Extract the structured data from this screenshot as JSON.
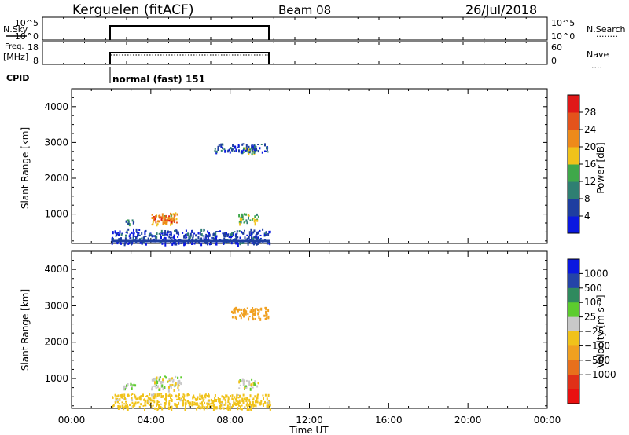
{
  "header": {
    "station": "Kerguelen (fitACF)",
    "beam": "Beam 08",
    "date": "26/Jul/2018"
  },
  "nsky_panel": {
    "left_label": "N.Sky",
    "left_ticks": [
      "10^5",
      "10^0"
    ],
    "right_ticks": [
      "10^5",
      "10^0"
    ],
    "right_label": "N.Search",
    "right_legend": "........"
  },
  "freq_panel": {
    "left_label_1": "Freq.",
    "left_label_2": "[MHz]",
    "left_ticks": [
      "18",
      "8"
    ],
    "right_ticks": [
      "60",
      "0"
    ],
    "right_label": "Nave",
    "right_legend": "...."
  },
  "cpid_panel": {
    "label": "CPID",
    "program": "normal (fast) 151"
  },
  "time_axis": {
    "label": "Time UT",
    "ticks": [
      "00:00",
      "04:00",
      "08:00",
      "12:00",
      "16:00",
      "20:00",
      "00:00"
    ]
  },
  "power_colorbar": {
    "label": "Power [dB]",
    "ticks": [
      "4",
      "8",
      "12",
      "16",
      "20",
      "24",
      "28"
    ],
    "colors": [
      "#0a18e0",
      "#1e3ea0",
      "#2f7f72",
      "#3fa84a",
      "#f0c21a",
      "#ee8a1a",
      "#e4531c",
      "#e01818"
    ]
  },
  "velocity_colorbar": {
    "label": "Velocity [m s⁻¹]",
    "ticks": [
      "1000",
      "500",
      "100",
      "25",
      "−25",
      "−100",
      "−500",
      "−1000"
    ],
    "colors": [
      "#0a18e0",
      "#2444a8",
      "#2f8a5e",
      "#5ccc2e",
      "#c8c8c8",
      "#f0c21a",
      "#f0a020",
      "#e8701c",
      "#e03018",
      "#e81010"
    ]
  },
  "chart_data": [
    {
      "type": "heatmap",
      "title": "Power",
      "xlabel": "",
      "ylabel": "Slant Range [km]",
      "xlim": [
        0,
        24
      ],
      "ylim": [
        180,
        4500
      ],
      "yticks": [
        1000,
        2000,
        3000,
        4000
      ],
      "ytick_labels": [
        "1000",
        "2000",
        "3000",
        "4000"
      ],
      "colorbar_label": "Power [dB]",
      "data_interval_hours": [
        2.0,
        10.0
      ],
      "regions": [
        {
          "x": [
            4.0,
            5.3
          ],
          "y": [
            720,
            1060
          ],
          "value": 20
        },
        {
          "x": [
            4.1,
            5.2
          ],
          "y": [
            780,
            980
          ],
          "value": 26
        },
        {
          "x": [
            2.6,
            3.1
          ],
          "y": [
            740,
            880
          ],
          "value": 10
        },
        {
          "x": [
            8.4,
            9.4
          ],
          "y": [
            760,
            1030
          ],
          "value": 14
        },
        {
          "x": [
            8.6,
            9.3
          ],
          "y": [
            2680,
            2960
          ],
          "value": 14
        },
        {
          "x": [
            7.2,
            9.9
          ],
          "y": [
            2750,
            2980
          ],
          "value": 6
        },
        {
          "x": [
            2.0,
            10.0
          ],
          "y": [
            210,
            580
          ],
          "value": 5
        },
        {
          "x": [
            2.0,
            10.0
          ],
          "y": [
            180,
            215
          ],
          "value": 2
        }
      ]
    },
    {
      "type": "heatmap",
      "title": "Velocity",
      "xlabel": "Time UT",
      "ylabel": "Slant Range [km]",
      "xlim": [
        0,
        24
      ],
      "ylim": [
        180,
        4500
      ],
      "yticks": [
        1000,
        2000,
        3000,
        4000
      ],
      "ytick_labels": [
        "1000",
        "2000",
        "3000",
        "4000"
      ],
      "colorbar_label": "Velocity [m s⁻¹]",
      "data_interval_hours": [
        2.0,
        10.0
      ],
      "regions": [
        {
          "x": [
            4.0,
            5.5
          ],
          "y": [
            700,
            1080
          ],
          "value": 0
        },
        {
          "x": [
            8.4,
            9.4
          ],
          "y": [
            740,
            1000
          ],
          "value": 0
        },
        {
          "x": [
            8.0,
            9.9
          ],
          "y": [
            2650,
            2980
          ],
          "value": -400
        },
        {
          "x": [
            2.0,
            10.0
          ],
          "y": [
            180,
            600
          ],
          "value": -60
        },
        {
          "x": [
            2.5,
            3.2
          ],
          "y": [
            720,
            900
          ],
          "value": 50
        }
      ]
    }
  ]
}
